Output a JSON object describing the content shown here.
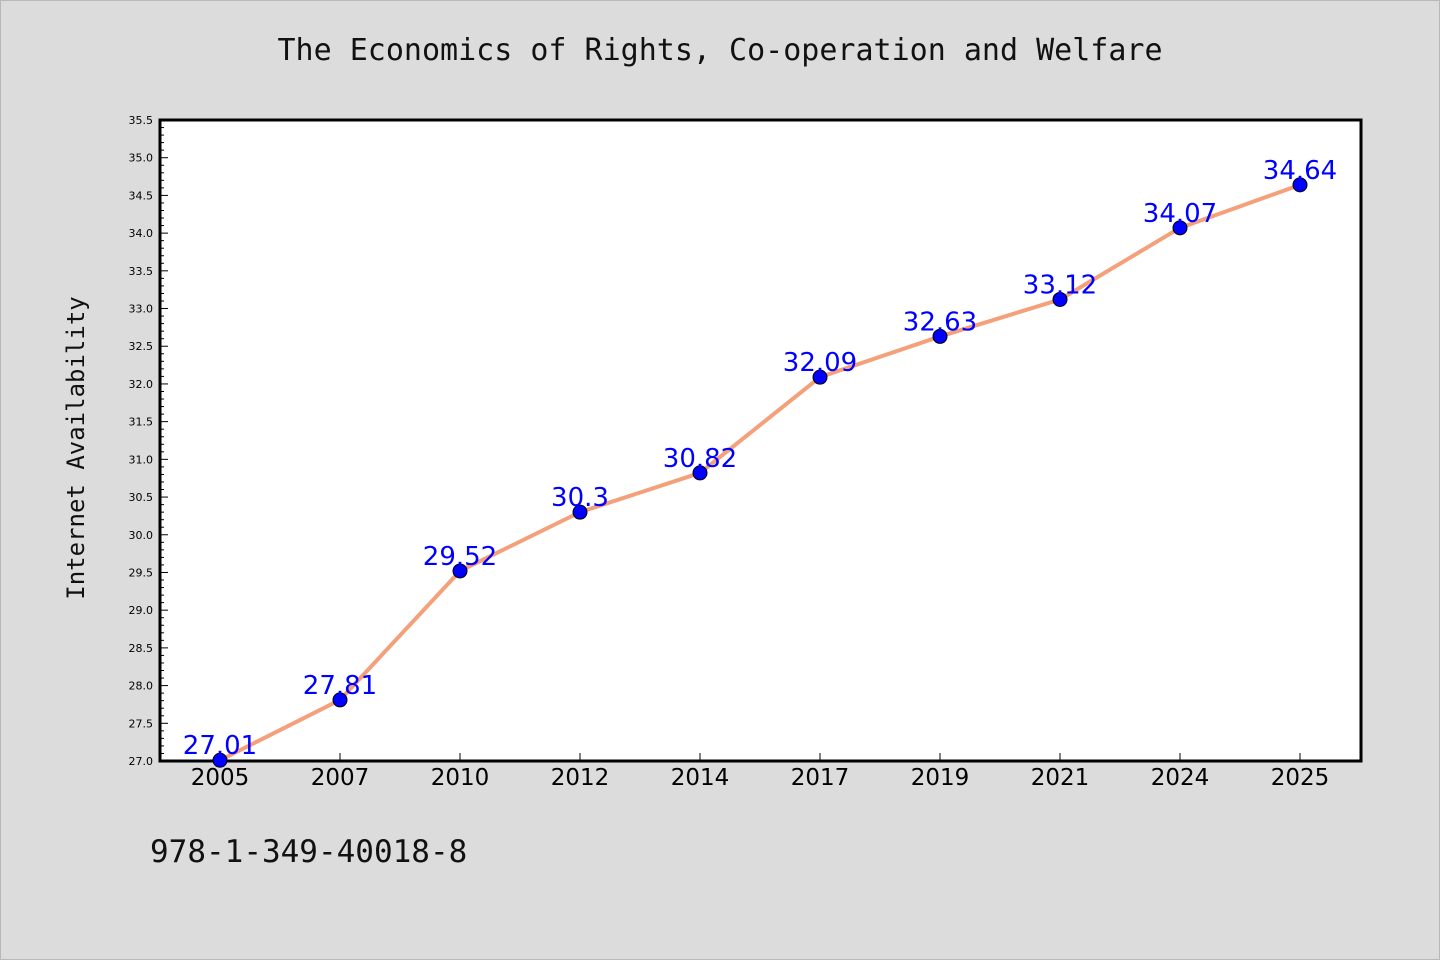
{
  "chart_data": {
    "type": "line",
    "title": "The Economics of Rights, Co-operation and Welfare",
    "ylabel": "Internet Availability",
    "xlabel": "",
    "categories": [
      "2005",
      "2007",
      "2010",
      "2012",
      "2014",
      "2017",
      "2019",
      "2021",
      "2024",
      "2025"
    ],
    "series": [
      {
        "values": [
          27.01,
          27.81,
          29.52,
          30.3,
          30.82,
          32.09,
          32.63,
          33.12,
          34.07,
          34.64
        ],
        "data_labels": [
          "27.01",
          "27.81",
          "29.52",
          "30.3",
          "30.82",
          "32.09",
          "32.63",
          "33.12",
          "34.07",
          "34.64"
        ],
        "line_color": "#f4a07a",
        "marker_color": "#0000ff"
      }
    ],
    "ylim": [
      27.0,
      35.5
    ],
    "yticks": [
      "27.0",
      "27.5",
      "28.0",
      "28.5",
      "29.0",
      "29.5",
      "30.0",
      "30.5",
      "31.0",
      "31.5",
      "32.0",
      "32.5",
      "33.0",
      "33.5",
      "34.0",
      "34.5",
      "35.0",
      "35.5"
    ],
    "grid": false,
    "legend": "none"
  },
  "footer": {
    "isbn": "978-1-349-40018-8"
  },
  "colors": {
    "background": "#dcdcdc",
    "plot_background": "#ffffff",
    "data_label": "#0000ff"
  }
}
